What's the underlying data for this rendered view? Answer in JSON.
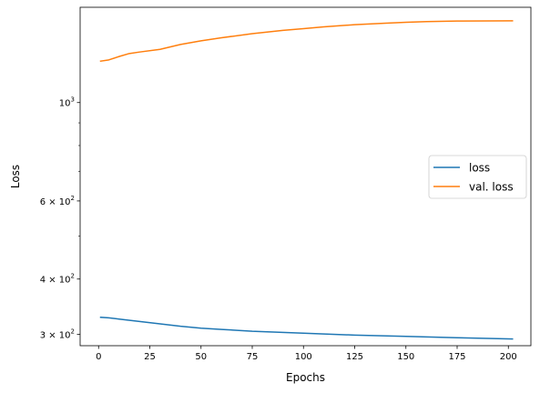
{
  "chart_data": {
    "type": "line",
    "title": "",
    "xlabel": "Epochs",
    "ylabel": "Loss",
    "xlim": [
      -9,
      211
    ],
    "ylim": [
      283,
      1640
    ],
    "yscale": "log",
    "grid": false,
    "legend_position": "center-right",
    "x_ticks": [
      {
        "value": 0,
        "label": "0"
      },
      {
        "value": 25,
        "label": "25"
      },
      {
        "value": 50,
        "label": "50"
      },
      {
        "value": 75,
        "label": "75"
      },
      {
        "value": 100,
        "label": "100"
      },
      {
        "value": 125,
        "label": "125"
      },
      {
        "value": 150,
        "label": "150"
      },
      {
        "value": 175,
        "label": "175"
      },
      {
        "value": 200,
        "label": "200"
      }
    ],
    "y_ticks_major": [
      {
        "value": 300,
        "base": "3",
        "exp": "2"
      },
      {
        "value": 400,
        "base": "4",
        "exp": "2"
      },
      {
        "value": 600,
        "base": "6",
        "exp": "2"
      },
      {
        "value": 1000,
        "base": "",
        "exp": "3"
      }
    ],
    "y_ticks_minor": [
      500,
      700,
      800,
      900
    ],
    "series": [
      {
        "name": "loss",
        "color": "#1f77b4",
        "x": [
          1,
          5,
          10,
          20,
          30,
          40,
          50,
          60,
          75,
          100,
          125,
          150,
          175,
          202
        ],
        "y": [
          328,
          327,
          325,
          321,
          317,
          313,
          310,
          308,
          305,
          302,
          299,
          297,
          295,
          293
        ]
      },
      {
        "name": "val. loss",
        "color": "#ff7f0e",
        "x": [
          1,
          5,
          10,
          15,
          20,
          30,
          40,
          50,
          60,
          75,
          90,
          100,
          110,
          125,
          140,
          150,
          160,
          175,
          190,
          202
        ],
        "y": [
          1240,
          1248,
          1270,
          1290,
          1300,
          1318,
          1352,
          1378,
          1400,
          1430,
          1455,
          1468,
          1482,
          1498,
          1510,
          1517,
          1522,
          1527,
          1528,
          1529
        ]
      }
    ]
  }
}
